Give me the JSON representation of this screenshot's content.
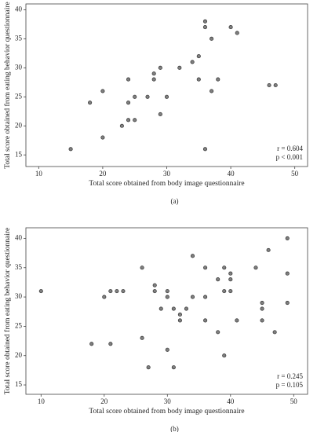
{
  "chart_data": [
    {
      "type": "scatter",
      "caption": "(a)",
      "x_label": "Total score obtained from body image questionnaire",
      "y_label": "Total score obtained from eating behavior questionnaire",
      "annotations": [
        "r = 0.604",
        "p < 0.001"
      ],
      "color": "#7f7f7f",
      "xlim": [
        8,
        52
      ],
      "xticks": [
        10,
        20,
        30,
        40,
        50
      ],
      "ylim": [
        13,
        41
      ],
      "yticks": [
        15,
        20,
        25,
        30,
        35,
        40
      ],
      "series": [
        {
          "x": [
            15,
            18,
            20,
            20,
            23,
            24,
            24,
            24,
            25,
            25,
            27,
            28,
            28,
            29,
            29,
            30,
            32,
            34,
            35,
            35,
            36,
            36,
            36,
            37,
            37,
            38,
            40,
            41,
            46,
            47
          ],
          "values": [
            16,
            24,
            26,
            18,
            20,
            28,
            24,
            21,
            25,
            21,
            25,
            29,
            28,
            30,
            22,
            25,
            30,
            31,
            32,
            28,
            38,
            37,
            16,
            35,
            26,
            28,
            37,
            36,
            27,
            27
          ]
        }
      ]
    },
    {
      "type": "scatter",
      "caption": "(b)",
      "x_label": "Total score obtained from body image questionnaire",
      "y_label": "Total score obtained from eating behavior questionnaire",
      "annotations": [
        "r = 0.245",
        "p = 0.105"
      ],
      "color": "#7f7f7f",
      "xlim": [
        7.6,
        52.2
      ],
      "xticks": [
        10,
        20,
        30,
        40,
        50
      ],
      "ylim": [
        13.4,
        41.8
      ],
      "yticks": [
        15,
        20,
        25,
        30,
        35,
        40
      ],
      "series": [
        {
          "x": [
            10,
            18,
            20,
            21,
            21,
            22,
            23,
            26,
            26,
            27,
            28,
            28,
            29,
            30,
            30,
            30,
            31,
            31,
            32,
            32,
            33,
            34,
            34,
            36,
            36,
            36,
            38,
            38,
            39,
            39,
            39,
            40,
            40,
            40,
            41,
            44,
            45,
            45,
            45,
            46,
            47,
            49,
            49,
            49
          ],
          "values": [
            31,
            22,
            30,
            22,
            31,
            31,
            31,
            35,
            23,
            18,
            32,
            31,
            28,
            31,
            30,
            21,
            28,
            18,
            27,
            26,
            28,
            37,
            30,
            35,
            30,
            26,
            33,
            24,
            35,
            31,
            20,
            34,
            33,
            31,
            26,
            35,
            29,
            28,
            26,
            38,
            24,
            40,
            34,
            29
          ]
        }
      ]
    }
  ]
}
